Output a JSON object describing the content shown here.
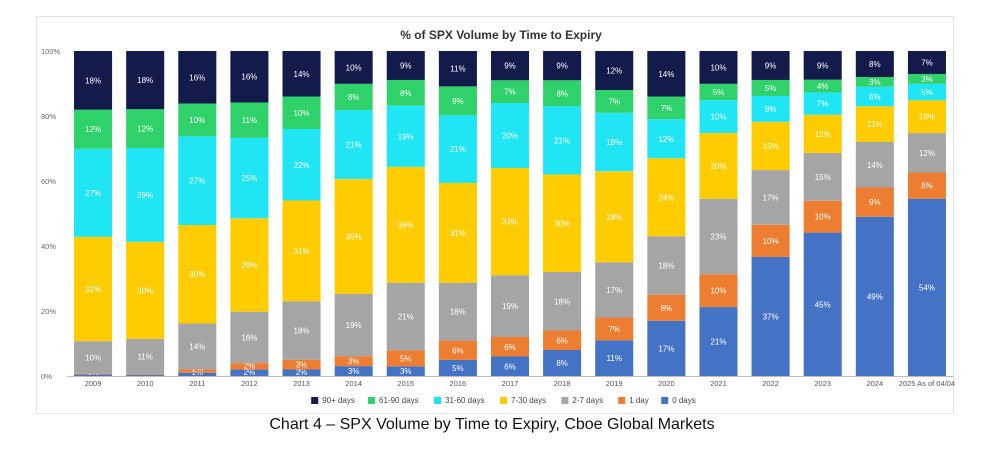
{
  "caption": "Chart 4 – SPX Volume by Time to Expiry, Cboe Global Markets",
  "chart_data": {
    "type": "bar",
    "stacked": true,
    "normalized": true,
    "title": "% of SPX Volume by Time to Expiry",
    "xlabel": "",
    "ylabel": "",
    "ylim": [
      0,
      100
    ],
    "yticks": [
      "0%",
      "20%",
      "40%",
      "60%",
      "80%",
      "100%"
    ],
    "grid": false,
    "legend_position": "bottom",
    "categories": [
      "2009",
      "2010",
      "2011",
      "2012",
      "2013",
      "2014",
      "2015",
      "2016",
      "2017",
      "2018",
      "2019",
      "2020",
      "2021",
      "2022",
      "2023",
      "2024",
      "2025 As of 04/04"
    ],
    "series": [
      {
        "name": "0 days",
        "color": "#4472C4",
        "values": [
          0.5,
          0.3,
          1,
          2,
          2,
          3,
          3,
          5,
          6,
          8,
          11,
          17,
          21,
          37,
          45,
          49,
          54
        ],
        "labels": [
          "0%",
          "0%",
          "1%",
          "2%",
          "2%",
          "3%",
          "3%",
          "5%",
          "6%",
          "8%",
          "11%",
          "17%",
          "21%",
          "37%",
          "45%",
          "49%",
          "54%"
        ]
      },
      {
        "name": "1 day",
        "color": "#ED7D31",
        "values": [
          0.2,
          0.2,
          1,
          2,
          3,
          3,
          5,
          6,
          6,
          6,
          7,
          8,
          10,
          10,
          10,
          9,
          8
        ],
        "labels": [
          "0%",
          "0%",
          "1%",
          "2%",
          "3%",
          "3%",
          "5%",
          "6%",
          "6%",
          "6%",
          "7%",
          "8%",
          "10%",
          "10%",
          "10%",
          "9%",
          "8%"
        ]
      },
      {
        "name": "2-7 days",
        "color": "#A5A5A5",
        "values": [
          10,
          11,
          14,
          16,
          18,
          19,
          21,
          18,
          19,
          18,
          17,
          18,
          23,
          17,
          15,
          14,
          12
        ],
        "labels": [
          "10%",
          "11%",
          "14%",
          "16%",
          "18%",
          "19%",
          "21%",
          "18%",
          "19%",
          "18%",
          "17%",
          "18%",
          "23%",
          "17%",
          "15%",
          "14%",
          "12%"
        ]
      },
      {
        "name": "7-30 days",
        "color": "#FFCC00",
        "values": [
          32,
          30,
          30,
          29,
          31,
          35,
          36,
          31,
          33,
          30,
          28,
          24,
          20,
          15,
          12,
          11,
          10
        ],
        "labels": [
          "32%",
          "30%",
          "30%",
          "29%",
          "31%",
          "35%",
          "36%",
          "31%",
          "33%",
          "30%",
          "28%",
          "24%",
          "20%",
          "15%",
          "12%",
          "11%",
          "10%"
        ]
      },
      {
        "name": "31-60 days",
        "color": "#1FE5F5",
        "values": [
          27,
          29,
          27,
          25,
          22,
          21,
          19,
          21,
          20,
          21,
          18,
          12,
          10,
          8,
          7,
          6,
          5
        ],
        "labels": [
          "27%",
          "29%",
          "27%",
          "25%",
          "22%",
          "21%",
          "19%",
          "21%",
          "20%",
          "21%",
          "18%",
          "12%",
          "10%",
          "8%",
          "7%",
          "6%",
          "5%"
        ]
      },
      {
        "name": "61-90 days",
        "color": "#2ED16A",
        "values": [
          12,
          12,
          10,
          11,
          10,
          8,
          8,
          9,
          7,
          8,
          7,
          7,
          5,
          5,
          4,
          3,
          3
        ],
        "labels": [
          "12%",
          "12%",
          "10%",
          "11%",
          "10%",
          "8%",
          "8%",
          "9%",
          "7%",
          "8%",
          "7%",
          "7%",
          "5%",
          "5%",
          "4%",
          "3%",
          "3%"
        ]
      },
      {
        "name": "90+ days",
        "color": "#131B4A",
        "values": [
          18,
          18,
          16,
          16,
          14,
          10,
          9,
          11,
          9,
          9,
          12,
          14,
          10,
          9,
          9,
          8,
          7
        ],
        "labels": [
          "18%",
          "18%",
          "16%",
          "16%",
          "14%",
          "10%",
          "9%",
          "11%",
          "9%",
          "9%",
          "12%",
          "14%",
          "10%",
          "9%",
          "9%",
          "8%",
          "7%"
        ]
      }
    ],
    "legend_order": [
      "90+ days",
      "61-90 days",
      "31-60 days",
      "7-30 days",
      "2-7 days",
      "1 day",
      "0 days"
    ]
  }
}
